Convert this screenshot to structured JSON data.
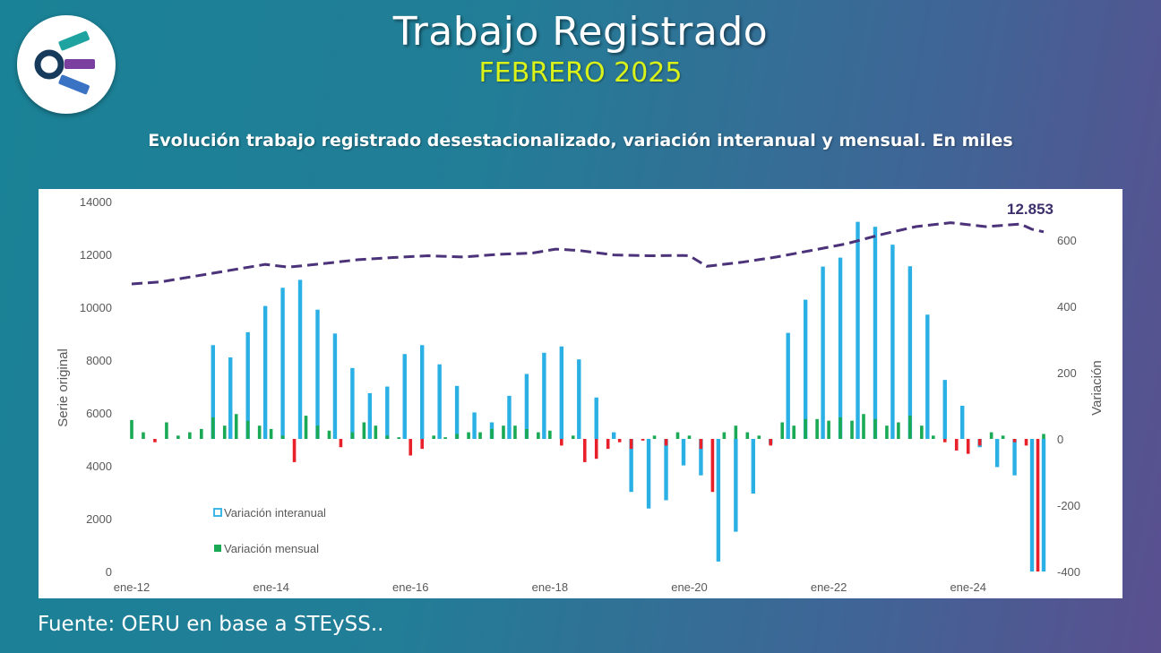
{
  "header": {
    "title": "Trabajo Registrado",
    "period": "FEBRERO 2025",
    "subtitle": "Evolución trabajo registrado desestacionalizado, variación interanual y mensual. En miles"
  },
  "footer": {
    "source": "Fuente: OERU en base a STEySS.."
  },
  "logo": {
    "icon": "oeru-logo-icon",
    "colors": [
      "#1ea3a0",
      "#7b3fa0",
      "#3a73c4",
      "#163a5c"
    ]
  },
  "colors": {
    "interanual": "#2ab0e4",
    "mensual_pos": "#1aaa55",
    "mensual_neg": "#e8202a",
    "serie": "#4b3279",
    "title_accent": "#d8f21a"
  },
  "chart_data": {
    "type": "bar",
    "x_start": "2012-01",
    "x_end": "2025-02",
    "x_tick_labels": [
      "ene-12",
      "ene-14",
      "ene-16",
      "ene-18",
      "ene-20",
      "ene-22",
      "ene-24"
    ],
    "y_left": {
      "label": "Serie original",
      "range": [
        0,
        14000
      ],
      "ticks": [
        "0",
        "2000",
        "4000",
        "6000",
        "8000",
        "10000",
        "12000",
        "14000"
      ]
    },
    "y_right": {
      "label": "Variación",
      "range": [
        -400,
        700
      ],
      "ticks": [
        "-400",
        "-200",
        "0",
        "200",
        "400",
        "600"
      ]
    },
    "last_value_label": "12.853",
    "legend": {
      "interanual": "Variación interanual",
      "mensual": "Variación mensual"
    },
    "series": [
      {
        "name": "Serie original",
        "axis": "left",
        "style": "dashed-line",
        "points": [
          [
            "2012-01",
            10880
          ],
          [
            "2012-06",
            10960
          ],
          [
            "2012-12",
            11180
          ],
          [
            "2013-06",
            11400
          ],
          [
            "2013-12",
            11620
          ],
          [
            "2014-04",
            11520
          ],
          [
            "2014-10",
            11650
          ],
          [
            "2015-04",
            11800
          ],
          [
            "2015-10",
            11880
          ],
          [
            "2016-04",
            11950
          ],
          [
            "2016-10",
            11900
          ],
          [
            "2017-04",
            12000
          ],
          [
            "2017-10",
            12050
          ],
          [
            "2018-02",
            12200
          ],
          [
            "2018-06",
            12150
          ],
          [
            "2018-12",
            11980
          ],
          [
            "2019-06",
            11950
          ],
          [
            "2019-12",
            11960
          ],
          [
            "2020-01",
            11950
          ],
          [
            "2020-04",
            11550
          ],
          [
            "2020-10",
            11700
          ],
          [
            "2021-04",
            11900
          ],
          [
            "2021-10",
            12150
          ],
          [
            "2022-04",
            12400
          ],
          [
            "2022-10",
            12750
          ],
          [
            "2023-04",
            13050
          ],
          [
            "2023-10",
            13200
          ],
          [
            "2024-04",
            13050
          ],
          [
            "2024-10",
            13150
          ],
          [
            "2024-12",
            12950
          ],
          [
            "2025-02",
            12853
          ]
        ]
      },
      {
        "name": "Variación interanual",
        "axis": "right",
        "points": [
          [
            "2013-03",
            283
          ],
          [
            "2013-06",
            246
          ],
          [
            "2013-09",
            322
          ],
          [
            "2013-12",
            401
          ],
          [
            "2014-03",
            456
          ],
          [
            "2014-06",
            480
          ],
          [
            "2014-09",
            390
          ],
          [
            "2014-12",
            318
          ],
          [
            "2015-03",
            214
          ],
          [
            "2015-06",
            138
          ],
          [
            "2015-09",
            158
          ],
          [
            "2015-12",
            256
          ],
          [
            "2016-03",
            283
          ],
          [
            "2016-06",
            225
          ],
          [
            "2016-09",
            160
          ],
          [
            "2016-12",
            80
          ],
          [
            "2017-03",
            50
          ],
          [
            "2017-06",
            130
          ],
          [
            "2017-09",
            196
          ],
          [
            "2017-12",
            260
          ],
          [
            "2018-03",
            279
          ],
          [
            "2018-06",
            240
          ],
          [
            "2018-09",
            125
          ],
          [
            "2018-12",
            20
          ],
          [
            "2019-03",
            -160
          ],
          [
            "2019-06",
            -210
          ],
          [
            "2019-09",
            -185
          ],
          [
            "2019-12",
            -80
          ],
          [
            "2020-03",
            -110
          ],
          [
            "2020-06",
            -370
          ],
          [
            "2020-09",
            -280
          ],
          [
            "2020-12",
            -165
          ],
          [
            "2021-03",
            -15
          ],
          [
            "2021-06",
            320
          ],
          [
            "2021-09",
            420
          ],
          [
            "2021-12",
            520
          ],
          [
            "2022-03",
            547
          ],
          [
            "2022-06",
            655
          ],
          [
            "2022-09",
            640
          ],
          [
            "2022-12",
            586
          ],
          [
            "2023-03",
            521
          ],
          [
            "2023-06",
            375
          ],
          [
            "2023-09",
            178
          ],
          [
            "2023-12",
            100
          ],
          [
            "2024-03",
            -25
          ],
          [
            "2024-06",
            -85
          ],
          [
            "2024-09",
            -110
          ],
          [
            "2024-12",
            -400
          ],
          [
            "2025-02",
            -400
          ]
        ]
      },
      {
        "name": "Variación mensual",
        "axis": "right",
        "points": [
          [
            "2012-01",
            57
          ],
          [
            "2012-03",
            20
          ],
          [
            "2012-05",
            -10
          ],
          [
            "2012-07",
            50
          ],
          [
            "2012-09",
            10
          ],
          [
            "2012-11",
            20
          ],
          [
            "2013-01",
            30
          ],
          [
            "2013-03",
            65
          ],
          [
            "2013-05",
            40
          ],
          [
            "2013-07",
            75
          ],
          [
            "2013-09",
            55
          ],
          [
            "2013-11",
            40
          ],
          [
            "2014-01",
            30
          ],
          [
            "2014-03",
            10
          ],
          [
            "2014-05",
            -70
          ],
          [
            "2014-07",
            70
          ],
          [
            "2014-09",
            40
          ],
          [
            "2014-11",
            25
          ],
          [
            "2015-01",
            -25
          ],
          [
            "2015-03",
            20
          ],
          [
            "2015-05",
            50
          ],
          [
            "2015-07",
            40
          ],
          [
            "2015-09",
            10
          ],
          [
            "2015-11",
            5
          ],
          [
            "2016-01",
            -50
          ],
          [
            "2016-03",
            -30
          ],
          [
            "2016-05",
            10
          ],
          [
            "2016-07",
            5
          ],
          [
            "2016-09",
            15
          ],
          [
            "2016-11",
            20
          ],
          [
            "2017-01",
            20
          ],
          [
            "2017-03",
            30
          ],
          [
            "2017-05",
            40
          ],
          [
            "2017-07",
            40
          ],
          [
            "2017-09",
            30
          ],
          [
            "2017-11",
            20
          ],
          [
            "2018-01",
            25
          ],
          [
            "2018-03",
            -20
          ],
          [
            "2018-05",
            10
          ],
          [
            "2018-07",
            -70
          ],
          [
            "2018-09",
            -60
          ],
          [
            "2018-11",
            -30
          ],
          [
            "2019-01",
            -10
          ],
          [
            "2019-03",
            -30
          ],
          [
            "2019-05",
            -5
          ],
          [
            "2019-07",
            10
          ],
          [
            "2019-09",
            -20
          ],
          [
            "2019-11",
            20
          ],
          [
            "2020-01",
            10
          ],
          [
            "2020-03",
            -30
          ],
          [
            "2020-05",
            -160
          ],
          [
            "2020-07",
            20
          ],
          [
            "2020-09",
            40
          ],
          [
            "2020-11",
            20
          ],
          [
            "2021-01",
            10
          ],
          [
            "2021-03",
            -20
          ],
          [
            "2021-05",
            50
          ],
          [
            "2021-07",
            40
          ],
          [
            "2021-09",
            60
          ],
          [
            "2021-11",
            60
          ],
          [
            "2022-01",
            55
          ],
          [
            "2022-03",
            65
          ],
          [
            "2022-05",
            55
          ],
          [
            "2022-07",
            75
          ],
          [
            "2022-09",
            60
          ],
          [
            "2022-11",
            40
          ],
          [
            "2023-01",
            50
          ],
          [
            "2023-03",
            70
          ],
          [
            "2023-05",
            40
          ],
          [
            "2023-07",
            10
          ],
          [
            "2023-09",
            -10
          ],
          [
            "2023-11",
            -35
          ],
          [
            "2024-01",
            -45
          ],
          [
            "2024-03",
            -20
          ],
          [
            "2024-05",
            20
          ],
          [
            "2024-07",
            10
          ],
          [
            "2024-09",
            -10
          ],
          [
            "2024-11",
            -20
          ],
          [
            "2025-01",
            -400
          ],
          [
            "2025-02",
            15
          ]
        ]
      }
    ]
  }
}
